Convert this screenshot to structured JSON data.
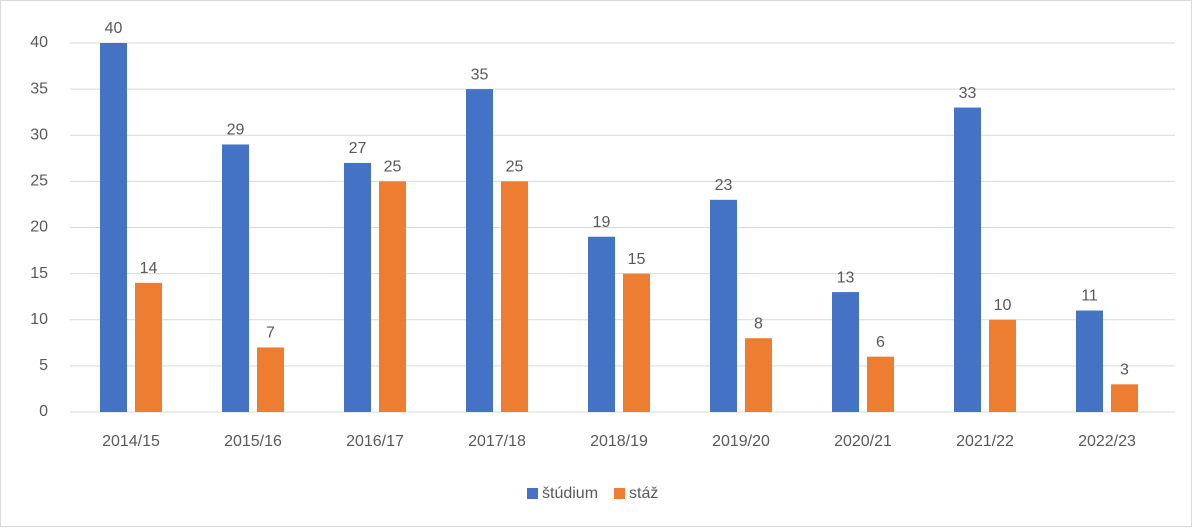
{
  "chart_data": {
    "type": "bar",
    "categories": [
      "2014/15",
      "2015/16",
      "2016/17",
      "2017/18",
      "2018/19",
      "2019/20",
      "2020/21",
      "2021/22",
      "2022/23"
    ],
    "series": [
      {
        "name": "štúdium",
        "color": "#4472c4",
        "values": [
          40,
          29,
          27,
          35,
          19,
          23,
          13,
          33,
          11
        ]
      },
      {
        "name": "stáž",
        "color": "#ed7d31",
        "values": [
          14,
          7,
          25,
          25,
          15,
          8,
          6,
          10,
          3
        ]
      }
    ],
    "ylim": [
      0,
      40
    ],
    "yticks": [
      0,
      5,
      10,
      15,
      20,
      25,
      30,
      35,
      40
    ],
    "grid": true,
    "legend": "bottom"
  }
}
